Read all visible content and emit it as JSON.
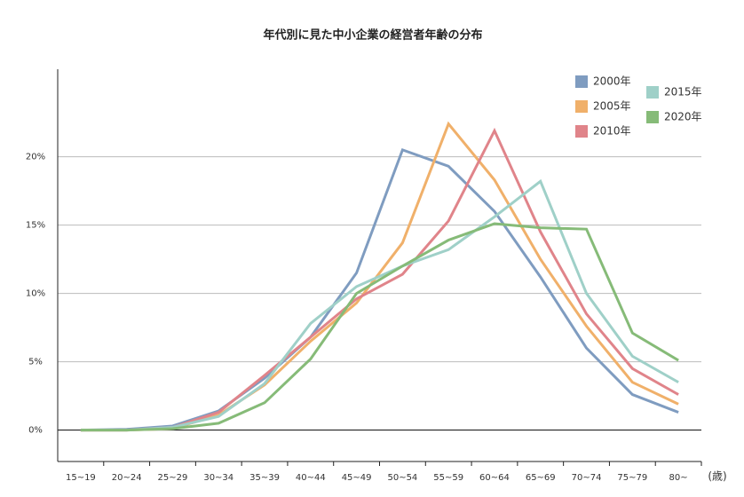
{
  "chart_data": {
    "type": "line",
    "title": "年代別に見た中小企業の経営者年齢の分布",
    "x_label": "(歳)",
    "categories": [
      "15~19",
      "20~24",
      "25~29",
      "30~34",
      "35~39",
      "40~44",
      "45~49",
      "50~54",
      "55~59",
      "60~64",
      "65~69",
      "70~74",
      "75~79",
      "80~"
    ],
    "series": [
      {
        "name": "2000年",
        "color": "#7f9cc0",
        "values": [
          0,
          0.05,
          0.3,
          1.4,
          3.8,
          6.8,
          11.5,
          20.5,
          19.3,
          16.0,
          11.2,
          6.0,
          2.6,
          1.3
        ]
      },
      {
        "name": "2005年",
        "color": "#f0b06a",
        "values": [
          0,
          0,
          0.1,
          1.1,
          3.3,
          6.5,
          9.3,
          13.7,
          22.4,
          18.3,
          12.5,
          7.6,
          3.5,
          1.9
        ]
      },
      {
        "name": "2010年",
        "color": "#e0848a",
        "values": [
          0,
          0,
          0.2,
          1.3,
          4.0,
          6.8,
          9.6,
          11.4,
          15.3,
          21.9,
          14.5,
          8.5,
          4.5,
          2.6
        ]
      },
      {
        "name": "2015年",
        "color": "#9fd0c8",
        "values": [
          0,
          0,
          0.2,
          1.0,
          3.4,
          7.8,
          10.5,
          12.0,
          13.2,
          15.6,
          18.2,
          10.0,
          5.4,
          3.5
        ]
      },
      {
        "name": "2020年",
        "color": "#86bb78",
        "values": [
          0,
          0,
          0.1,
          0.5,
          2.0,
          5.2,
          10.0,
          12.0,
          13.9,
          15.1,
          14.8,
          14.7,
          7.1,
          5.1
        ]
      }
    ],
    "ylim": [
      -2.3,
      26.4
    ],
    "yticks": [
      {
        "value": 0,
        "label": "0%"
      },
      {
        "value": 5,
        "label": "5%"
      },
      {
        "value": 10,
        "label": "10%"
      },
      {
        "value": 15,
        "label": "15%"
      },
      {
        "value": 20,
        "label": "20%"
      }
    ],
    "grid": true
  }
}
